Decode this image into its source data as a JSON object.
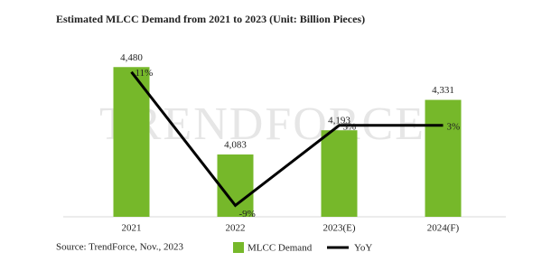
{
  "chart_data": {
    "type": "bar",
    "title": "Estimated MLCC Demand from 2021 to 2023 (Unit: Billion Pieces)",
    "watermark": "TRENDFORCE",
    "source": "Source: TrendForce, Nov., 2023",
    "categories": [
      "2021",
      "2022",
      "2023(E)",
      "2024(F)"
    ],
    "series": [
      {
        "name": "MLCC Demand",
        "type": "bar",
        "color": "#76b82a",
        "values": [
          4480,
          4083,
          4193,
          4331
        ],
        "value_labels": [
          "4,480",
          "4,083",
          "4,193",
          "4,331"
        ]
      },
      {
        "name": "YoY",
        "type": "line",
        "axis": "y2",
        "color": "#000000",
        "values": [
          11,
          -9,
          3,
          3
        ],
        "value_labels": [
          "11%",
          "-9%",
          "3%",
          "3%"
        ]
      }
    ],
    "ylim": [
      3800,
      4600
    ],
    "y2lim": [
      -10.7,
      15.7
    ],
    "legend": "bottom"
  }
}
